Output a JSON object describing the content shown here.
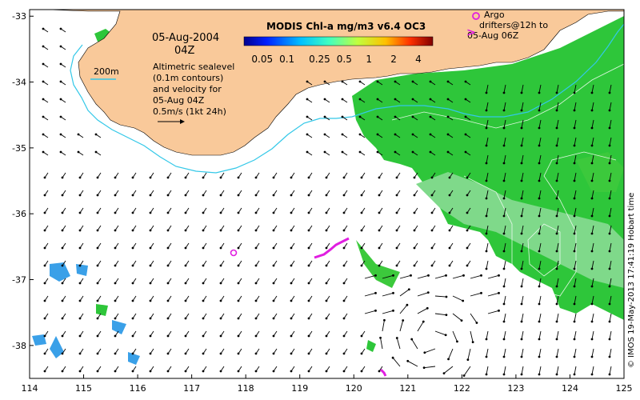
{
  "map": {
    "date_label": "05-Aug-2004",
    "time_label": "04Z",
    "contour_label": "200m",
    "description_lines": [
      "Altimetric sealevel",
      "(0.1m contours)",
      "and velocity for",
      "05-Aug 04Z",
      "0.5m/s (1kt 24h)"
    ],
    "argo_label": "Argo",
    "drifters_line1": "drifters@12h to",
    "drifters_line2": "05-Aug 06Z",
    "credit": "© IMOS 19-May-2013 17:41:19 Hobart time",
    "colorbar": {
      "title": "MODIS Chl-a mg/m3 v6.4 OC3",
      "tick_labels": [
        "0.05",
        "0.1",
        "0.25",
        "0.5",
        "1",
        "2",
        "4"
      ],
      "tick_values": [
        0.05,
        0.1,
        0.25,
        0.5,
        1,
        2,
        4
      ],
      "range": [
        0.03,
        6
      ],
      "scale": "log"
    },
    "x_ticks": [
      "114",
      "115",
      "116",
      "117",
      "118",
      "119",
      "120",
      "121",
      "122",
      "123",
      "124",
      "125"
    ],
    "y_ticks": [
      "-33",
      "-34",
      "-35",
      "-36",
      "-37",
      "-38"
    ],
    "lon_range": [
      114,
      125
    ],
    "lat_range": [
      -38.5,
      -32.9
    ],
    "colors": {
      "land": "#f9c99a",
      "chlorophyll_high": "#1fbf3f",
      "chlorophyll_mid": "#3cc93c",
      "contour_200m": "#33c8e8",
      "drifters": "#e01ee0",
      "argo": "#e01ee0",
      "arrows": "#000000"
    }
  }
}
